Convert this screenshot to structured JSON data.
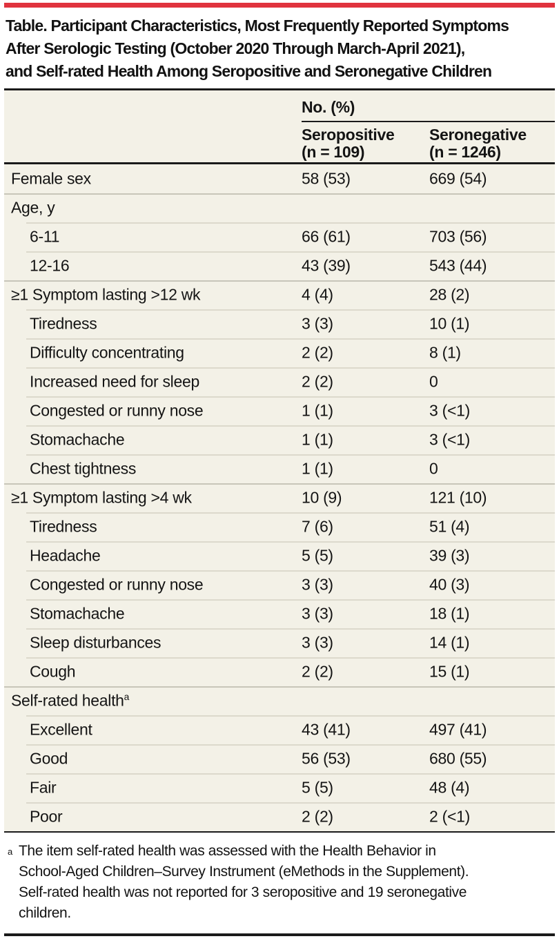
{
  "colors": {
    "accent": "#e0333e",
    "panel_bg": "#f3f1e7",
    "rule_black": "#1a1a1a",
    "separator_group": "#c7c5b9",
    "separator_sub": "#dcd9cc"
  },
  "title_lines": [
    "Table. Participant Characteristics, Most Frequently Reported Symptoms",
    "After Serologic Testing (October 2020 Through March-April 2021),",
    "and Self-rated Health Among Seropositive and Seronegative Children"
  ],
  "header": {
    "group_label": "No. (%)",
    "columns": [
      {
        "name_line": "Seropositive",
        "n_line": "(n = 109)"
      },
      {
        "name_line": "Seronegative",
        "n_line": "(n = 1246)"
      }
    ]
  },
  "rows": [
    {
      "label": "Female sex",
      "indent": false,
      "seropositive": "58 (53)",
      "seronegative": "669 (54)"
    },
    {
      "label": "Age, y",
      "indent": false,
      "seropositive": "",
      "seronegative": ""
    },
    {
      "label": "6-11",
      "indent": true,
      "seropositive": "66 (61)",
      "seronegative": "703 (56)"
    },
    {
      "label": "12-16",
      "indent": true,
      "seropositive": "43 (39)",
      "seronegative": "543 (44)"
    },
    {
      "label": "≥1 Symptom lasting >12 wk",
      "indent": false,
      "seropositive": "4 (4)",
      "seronegative": "28 (2)"
    },
    {
      "label": "Tiredness",
      "indent": true,
      "seropositive": "3 (3)",
      "seronegative": "10 (1)"
    },
    {
      "label": "Difficulty concentrating",
      "indent": true,
      "seropositive": "2 (2)",
      "seronegative": "8 (1)"
    },
    {
      "label": "Increased need for sleep",
      "indent": true,
      "seropositive": "2 (2)",
      "seronegative": "0"
    },
    {
      "label": "Congested or runny nose",
      "indent": true,
      "seropositive": "1 (1)",
      "seronegative": "3 (<1)"
    },
    {
      "label": "Stomachache",
      "indent": true,
      "seropositive": "1 (1)",
      "seronegative": "3 (<1)"
    },
    {
      "label": "Chest tightness",
      "indent": true,
      "seropositive": "1 (1)",
      "seronegative": "0"
    },
    {
      "label": "≥1 Symptom lasting >4 wk",
      "indent": false,
      "seropositive": "10 (9)",
      "seronegative": "121 (10)"
    },
    {
      "label": "Tiredness",
      "indent": true,
      "seropositive": "7 (6)",
      "seronegative": "51 (4)"
    },
    {
      "label": "Headache",
      "indent": true,
      "seropositive": "5 (5)",
      "seronegative": "39 (3)"
    },
    {
      "label": "Congested or runny nose",
      "indent": true,
      "seropositive": "3 (3)",
      "seronegative": "40 (3)"
    },
    {
      "label": "Stomachache",
      "indent": true,
      "seropositive": "3 (3)",
      "seronegative": "18 (1)"
    },
    {
      "label": "Sleep disturbances",
      "indent": true,
      "seropositive": "3 (3)",
      "seronegative": "14 (1)"
    },
    {
      "label": "Cough",
      "indent": true,
      "seropositive": "2 (2)",
      "seronegative": "15 (1)"
    },
    {
      "label": "Self-rated health",
      "sup": "a",
      "indent": false,
      "seropositive": "",
      "seronegative": ""
    },
    {
      "label": "Excellent",
      "indent": true,
      "seropositive": "43 (41)",
      "seronegative": "497 (41)"
    },
    {
      "label": "Good",
      "indent": true,
      "seropositive": "56 (53)",
      "seronegative": "680 (55)"
    },
    {
      "label": "Fair",
      "indent": true,
      "seropositive": "5 (5)",
      "seronegative": "48 (4)"
    },
    {
      "label": "Poor",
      "indent": true,
      "seropositive": "2 (2)",
      "seronegative": "2 (<1)"
    }
  ],
  "footnote": {
    "marker": "a",
    "lines": [
      "The item self-rated health was assessed with the Health Behavior in",
      "School-Aged Children–Survey Instrument (eMethods in the Supplement).",
      "Self-rated health was not reported for 3 seropositive and 19 seronegative",
      "children."
    ]
  }
}
